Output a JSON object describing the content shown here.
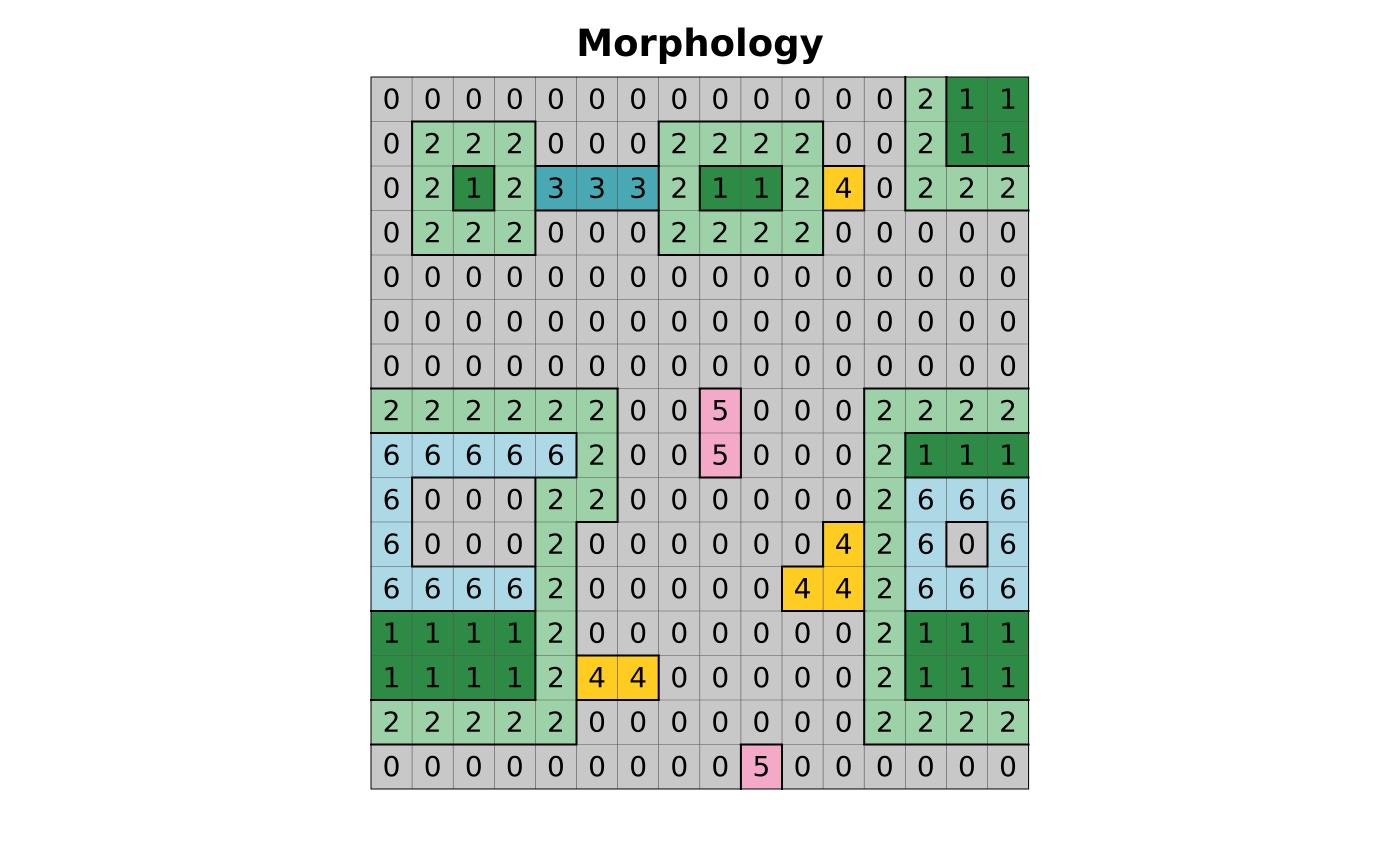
{
  "chart_data": {
    "type": "heatmap",
    "title": "Morphology",
    "xlabel": "",
    "ylabel": "",
    "grid": true,
    "legend": "none",
    "nrows": 16,
    "ncols": 16,
    "values": [
      [
        0,
        0,
        0,
        0,
        0,
        0,
        0,
        0,
        0,
        0,
        0,
        0,
        0,
        2,
        1,
        1
      ],
      [
        0,
        2,
        2,
        2,
        0,
        0,
        0,
        2,
        2,
        2,
        2,
        0,
        0,
        2,
        1,
        1
      ],
      [
        0,
        2,
        1,
        2,
        3,
        3,
        3,
        2,
        1,
        1,
        2,
        4,
        0,
        2,
        2,
        2
      ],
      [
        0,
        2,
        2,
        2,
        0,
        0,
        0,
        2,
        2,
        2,
        2,
        0,
        0,
        0,
        0,
        0
      ],
      [
        0,
        0,
        0,
        0,
        0,
        0,
        0,
        0,
        0,
        0,
        0,
        0,
        0,
        0,
        0,
        0
      ],
      [
        0,
        0,
        0,
        0,
        0,
        0,
        0,
        0,
        0,
        0,
        0,
        0,
        0,
        0,
        0,
        0
      ],
      [
        0,
        0,
        0,
        0,
        0,
        0,
        0,
        0,
        0,
        0,
        0,
        0,
        0,
        0,
        0,
        0
      ],
      [
        2,
        2,
        2,
        2,
        2,
        2,
        0,
        0,
        5,
        0,
        0,
        0,
        2,
        2,
        2,
        2
      ],
      [
        6,
        6,
        6,
        6,
        6,
        2,
        0,
        0,
        5,
        0,
        0,
        0,
        2,
        1,
        1,
        1
      ],
      [
        6,
        0,
        0,
        0,
        2,
        2,
        0,
        0,
        0,
        0,
        0,
        0,
        2,
        6,
        6,
        6
      ],
      [
        6,
        0,
        0,
        0,
        2,
        0,
        0,
        0,
        0,
        0,
        0,
        4,
        2,
        6,
        0,
        6
      ],
      [
        6,
        6,
        6,
        6,
        2,
        0,
        0,
        0,
        0,
        0,
        4,
        4,
        2,
        6,
        6,
        6
      ],
      [
        1,
        1,
        1,
        1,
        2,
        0,
        0,
        0,
        0,
        0,
        0,
        0,
        2,
        1,
        1,
        1
      ],
      [
        1,
        1,
        1,
        1,
        2,
        4,
        4,
        0,
        0,
        0,
        0,
        0,
        2,
        1,
        1,
        1
      ],
      [
        2,
        2,
        2,
        2,
        2,
        0,
        0,
        0,
        0,
        0,
        0,
        0,
        2,
        2,
        2,
        2
      ],
      [
        0,
        0,
        0,
        0,
        0,
        0,
        0,
        0,
        0,
        5,
        0,
        0,
        0,
        0,
        0,
        0
      ]
    ],
    "category_colors": {
      "0": "#c8c8c8",
      "1": "#2e8b45",
      "2": "#9dd2a9",
      "3": "#48a9b4",
      "4": "#ffcc22",
      "5": "#f4a9c9",
      "6": "#add8e6"
    }
  }
}
